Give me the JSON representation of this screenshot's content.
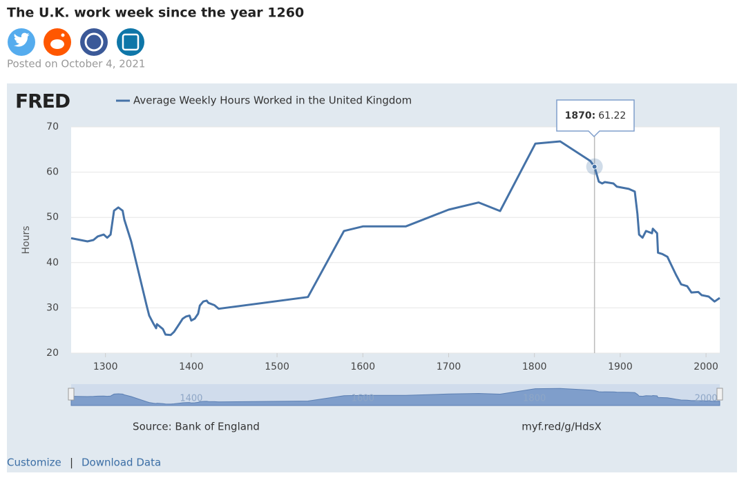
{
  "page": {
    "title": "The U.K. work week since the year 1260",
    "posted": "Posted on October 4, 2021",
    "links": [
      "Customize",
      "Download Data"
    ]
  },
  "chart_data": {
    "type": "line",
    "logo": "FRED",
    "ylabel": "Hours",
    "source": "Source: Bank of England",
    "short_link": "myf.red/g/HdsX",
    "x": [
      1260,
      1279,
      1286,
      1291,
      1298,
      1302,
      1306,
      1310,
      1315,
      1320,
      1322,
      1330,
      1348,
      1351,
      1356,
      1359,
      1360,
      1367,
      1370,
      1376,
      1380,
      1387,
      1390,
      1394,
      1398,
      1400,
      1404,
      1408,
      1410,
      1414,
      1418,
      1420,
      1427,
      1432,
      1536,
      1578,
      1600,
      1650,
      1700,
      1735,
      1760,
      1801,
      1830,
      1865,
      1870,
      1875,
      1879,
      1882,
      1892,
      1896,
      1910,
      1917,
      1920,
      1922,
      1926,
      1930,
      1937,
      1938,
      1943,
      1944,
      1949,
      1955,
      1960,
      1965,
      1971,
      1978,
      1983,
      1991,
      1995,
      2003,
      2010,
      2016
    ],
    "series": [
      {
        "name": "Average Weekly Hours Worked in the United Kingdom",
        "color": "#4572a7",
        "values": [
          45.4,
          44.7,
          45.0,
          45.8,
          46.2,
          45.5,
          46.2,
          51.5,
          52.2,
          51.5,
          49.5,
          44.7,
          30.5,
          28.3,
          26.5,
          25.5,
          26.4,
          25.3,
          24.1,
          24.0,
          24.7,
          26.7,
          27.6,
          28.1,
          28.3,
          27.2,
          27.6,
          28.7,
          30.5,
          31.4,
          31.6,
          31.1,
          30.6,
          29.8,
          32.4,
          47.0,
          48.0,
          48.0,
          51.7,
          53.3,
          51.4,
          66.3,
          66.8,
          62.5,
          61.22,
          57.9,
          57.5,
          57.8,
          57.5,
          56.8,
          56.3,
          55.7,
          50.8,
          46.2,
          45.5,
          47.0,
          46.5,
          47.5,
          46.5,
          42.2,
          41.9,
          41.3,
          39.3,
          37.3,
          35.2,
          34.8,
          33.4,
          33.5,
          32.8,
          32.5,
          31.4,
          32.2
        ]
      }
    ],
    "xlim": [
      1260,
      2016
    ],
    "xticks": [
      1300,
      1400,
      1500,
      1600,
      1700,
      1800,
      1900,
      2000
    ],
    "ylim": [
      20,
      70
    ],
    "yticks": [
      20,
      30,
      40,
      50,
      60,
      70
    ],
    "grid": true,
    "navigator_ticks": [
      1400,
      1600,
      1800,
      2000
    ],
    "tooltip": {
      "label": "1870:",
      "index": 44
    }
  }
}
